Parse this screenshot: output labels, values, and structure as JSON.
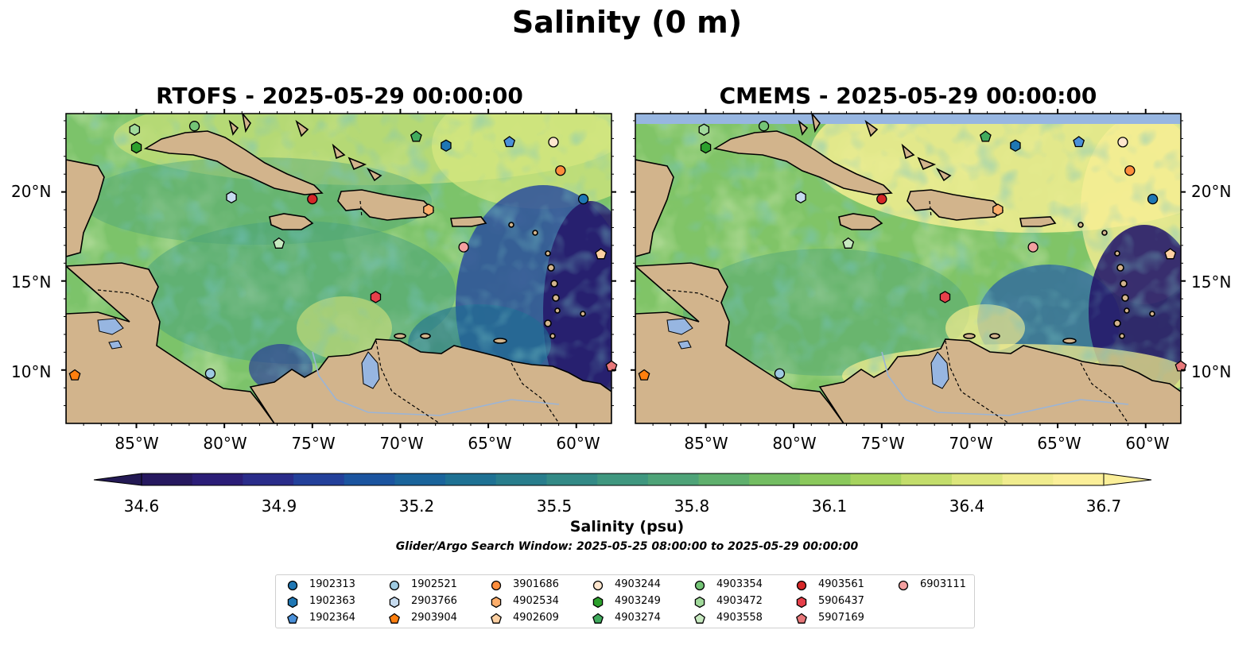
{
  "figure": {
    "suptitle": "Salinity (0 m)",
    "panels": [
      {
        "title": "RTOFS - 2025-05-29 00:00:00",
        "model": "RTOFS"
      },
      {
        "title": "CMEMS - 2025-05-29 00:00:00",
        "model": "CMEMS"
      }
    ],
    "lat_labels": [
      "20°N",
      "15°N",
      "10°N"
    ],
    "lon_labels": [
      "85°W",
      "80°W",
      "75°W",
      "70°W",
      "65°W",
      "60°W"
    ],
    "colorbar": {
      "ticks": [
        "34.6",
        "34.9",
        "35.2",
        "35.5",
        "35.8",
        "36.1",
        "36.4",
        "36.7"
      ],
      "label": "Salinity (psu)",
      "range": [
        34.6,
        36.7
      ],
      "colors": [
        "#26185f",
        "#2b1d77",
        "#2a2c8a",
        "#23409a",
        "#1b549f",
        "#1a649b",
        "#1e7193",
        "#287d8c",
        "#338a86",
        "#3f977f",
        "#4ea378",
        "#5fb06d",
        "#73bd62",
        "#8bc95c",
        "#a6d35e",
        "#c3dd6b",
        "#dce67c",
        "#f0ec8e",
        "#fbef99"
      ],
      "extend": "both"
    },
    "search_window": "Glider/Argo Search Window: 2025-05-25 08:00:00 to 2025-05-29 00:00:00",
    "colors": {
      "land": "#d2b48c",
      "ocean_low": "#26185f",
      "ocean_high": "#fdee9a",
      "lakes": "#97b6e1"
    }
  },
  "legend": {
    "items": [
      {
        "id": "1902313",
        "marker": "circle",
        "color": "#1f77b4"
      },
      {
        "id": "1902363",
        "marker": "hexagon",
        "color": "#1f77b4"
      },
      {
        "id": "1902364",
        "marker": "pentagon",
        "color": "#4a90d9"
      },
      {
        "id": "1902521",
        "marker": "circle",
        "color": "#9ecae1"
      },
      {
        "id": "2903766",
        "marker": "hexagon",
        "color": "#c6dbef"
      },
      {
        "id": "2903904",
        "marker": "pentagon",
        "color": "#ff7f0e"
      },
      {
        "id": "3901686",
        "marker": "circle",
        "color": "#fd8d3c"
      },
      {
        "id": "4902534",
        "marker": "hexagon",
        "color": "#fdae6b"
      },
      {
        "id": "4902609",
        "marker": "pentagon",
        "color": "#fdd0a2"
      },
      {
        "id": "4903244",
        "marker": "circle",
        "color": "#fee6ce"
      },
      {
        "id": "4903249",
        "marker": "hexagon",
        "color": "#2ca02c"
      },
      {
        "id": "4903274",
        "marker": "pentagon",
        "color": "#41ab5d"
      },
      {
        "id": "4903354",
        "marker": "circle",
        "color": "#74c476"
      },
      {
        "id": "4903472",
        "marker": "hexagon",
        "color": "#a1d99b"
      },
      {
        "id": "4903558",
        "marker": "pentagon",
        "color": "#c7e9c0"
      },
      {
        "id": "4903561",
        "marker": "circle",
        "color": "#d62728"
      },
      {
        "id": "5906437",
        "marker": "hexagon",
        "color": "#e6404a"
      },
      {
        "id": "5907169",
        "marker": "pentagon",
        "color": "#e8787a"
      },
      {
        "id": "6903111",
        "marker": "circle",
        "color": "#f4a0a0"
      }
    ]
  },
  "stations": [
    {
      "id": "1902313",
      "lon": -59.6,
      "lat": 19.6
    },
    {
      "id": "1902363",
      "lon": -67.4,
      "lat": 22.6
    },
    {
      "id": "1902364",
      "lon": -63.8,
      "lat": 22.8
    },
    {
      "id": "1902521",
      "lon": -80.8,
      "lat": 9.8
    },
    {
      "id": "2903766",
      "lon": -79.6,
      "lat": 19.7
    },
    {
      "id": "2903904",
      "lon": -88.5,
      "lat": 9.7
    },
    {
      "id": "3901686",
      "lon": -60.9,
      "lat": 21.2
    },
    {
      "id": "4902534",
      "lon": -68.4,
      "lat": 19.0
    },
    {
      "id": "4902609",
      "lon": -58.6,
      "lat": 16.5
    },
    {
      "id": "4903244",
      "lon": -61.3,
      "lat": 22.8
    },
    {
      "id": "4903249",
      "lon": -85.0,
      "lat": 22.5
    },
    {
      "id": "4903274",
      "lon": -69.1,
      "lat": 23.1
    },
    {
      "id": "4903354",
      "lon": -81.7,
      "lat": 23.7
    },
    {
      "id": "4903472",
      "lon": -85.1,
      "lat": 23.5
    },
    {
      "id": "4903558",
      "lon": -76.9,
      "lat": 17.1
    },
    {
      "id": "4903561",
      "lon": -75.0,
      "lat": 19.6
    },
    {
      "id": "5906437",
      "lon": -71.4,
      "lat": 14.1
    },
    {
      "id": "5907169",
      "lon": -58.0,
      "lat": 10.2
    },
    {
      "id": "6903111",
      "lon": -66.4,
      "lat": 16.9
    }
  ]
}
